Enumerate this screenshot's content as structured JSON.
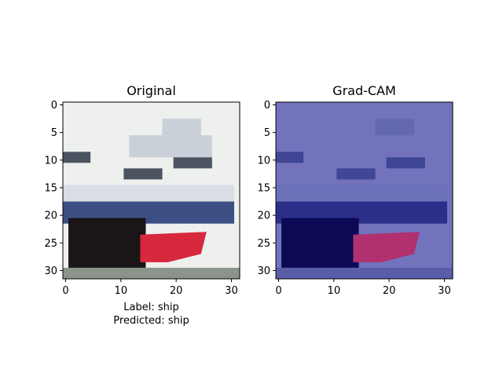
{
  "chart_data": [
    {
      "type": "image",
      "title": "Original",
      "image_size": [
        32,
        32
      ],
      "xlim": [
        0,
        31
      ],
      "ylim": [
        31,
        0
      ],
      "xticks": [
        0,
        10,
        20,
        30
      ],
      "yticks": [
        0,
        5,
        10,
        15,
        20,
        25,
        30
      ],
      "caption_lines": [
        "Label: ship",
        "Predicted: ship"
      ],
      "colors": {
        "sky": "#eef0ee",
        "upper_structure": "#c9d0d8",
        "windows": "#4b5460",
        "hull_blue": "#3c4f84",
        "hull_dark": "#1a1517",
        "red_stripe": "#d8283e",
        "water": "#8a948a"
      }
    },
    {
      "type": "image",
      "title": "Grad-CAM",
      "image_size": [
        32,
        32
      ],
      "xlim": [
        0,
        31
      ],
      "ylim": [
        31,
        0
      ],
      "xticks": [
        0,
        10,
        20,
        30
      ],
      "yticks": [
        0,
        5,
        10,
        15,
        20,
        25,
        30
      ],
      "colors": {
        "overlay": "#7272bd",
        "windows": "#3f4694",
        "hull_blue": "#2c2f8a",
        "hull_dark": "#0c0a55",
        "red_stripe": "#b1306f",
        "water": "#5a5ea8"
      }
    }
  ]
}
